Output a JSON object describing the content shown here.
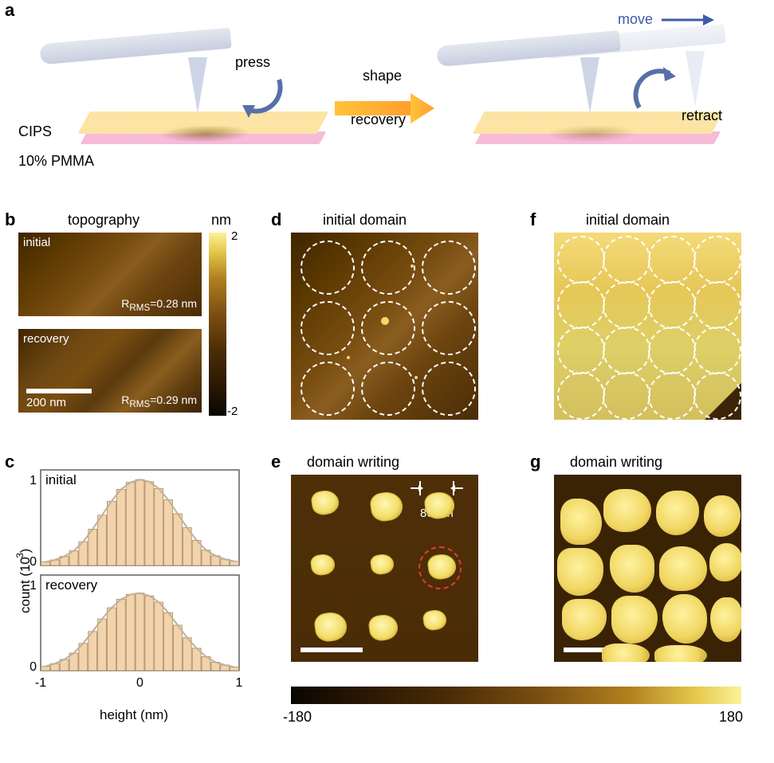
{
  "panel_letters": {
    "a": "a",
    "b": "b",
    "c": "c",
    "d": "d",
    "e": "e",
    "f": "f",
    "g": "g"
  },
  "schematic": {
    "cips_label": "CIPS",
    "pmma_label": "10% PMMA",
    "press_label": "press",
    "shape_label": "shape",
    "recovery_label": "recovery",
    "move_label": "move",
    "retract_label": "retract"
  },
  "panel_b": {
    "title": "topography",
    "unit": "nm",
    "initial_label": "initial",
    "recovery_label": "recovery",
    "rms_initial": "R",
    "rms_initial_sub": "RMS",
    "rms_initial_val": "=0.28 nm",
    "rms_recovery": "R",
    "rms_recovery_sub": "RMS",
    "rms_recovery_val": "=0.29 nm",
    "vbar_max": "2",
    "vbar_min": "-2",
    "scalebar_label": "200 nm"
  },
  "panel_d_title": "initial domain",
  "panel_f_title": "initial domain",
  "panel_e_title": "domain writing",
  "panel_g_title": "domain writing",
  "panel_e_size": "80 nm",
  "hbar_min": "-180",
  "hbar_max": "180",
  "panel_c": {
    "ylabel": "count (10 )",
    "ysuper": "3",
    "xlabel": "height (nm)",
    "initial": "initial",
    "recovery": "recovery",
    "y_ticks": [
      "0",
      "1"
    ],
    "x_ticks": [
      "-1",
      "0",
      "1"
    ],
    "gauss_color": "#c0b098",
    "bar_fill": "#f3d3ac",
    "bar_stroke": "#a58a60",
    "line_width": 2,
    "fontsize": 17,
    "histogram_initial": [
      50,
      80,
      130,
      210,
      340,
      520,
      720,
      920,
      1090,
      1190,
      1230,
      1200,
      1100,
      940,
      740,
      540,
      360,
      220,
      140,
      90,
      60
    ],
    "histogram_recovery": [
      60,
      100,
      160,
      250,
      390,
      560,
      740,
      900,
      1020,
      1090,
      1110,
      1070,
      980,
      830,
      650,
      470,
      320,
      200,
      120,
      80,
      50
    ]
  },
  "colors": {
    "afm_dark": "#4a2c06",
    "afm_light": "#f2de6a",
    "bg": "#ffffff",
    "dashed_white": "#ffffff",
    "dashed_red": "#e53935",
    "pmma": "#f6bbd9",
    "cips": "#fbe8c0",
    "cantilever": "#cdd5e6",
    "arrow_blue": "#3e5aa8"
  },
  "layout": {
    "d_circles": {
      "grid": 3,
      "d": 64
    },
    "f_circles": {
      "grid": 4,
      "d": 56
    }
  }
}
